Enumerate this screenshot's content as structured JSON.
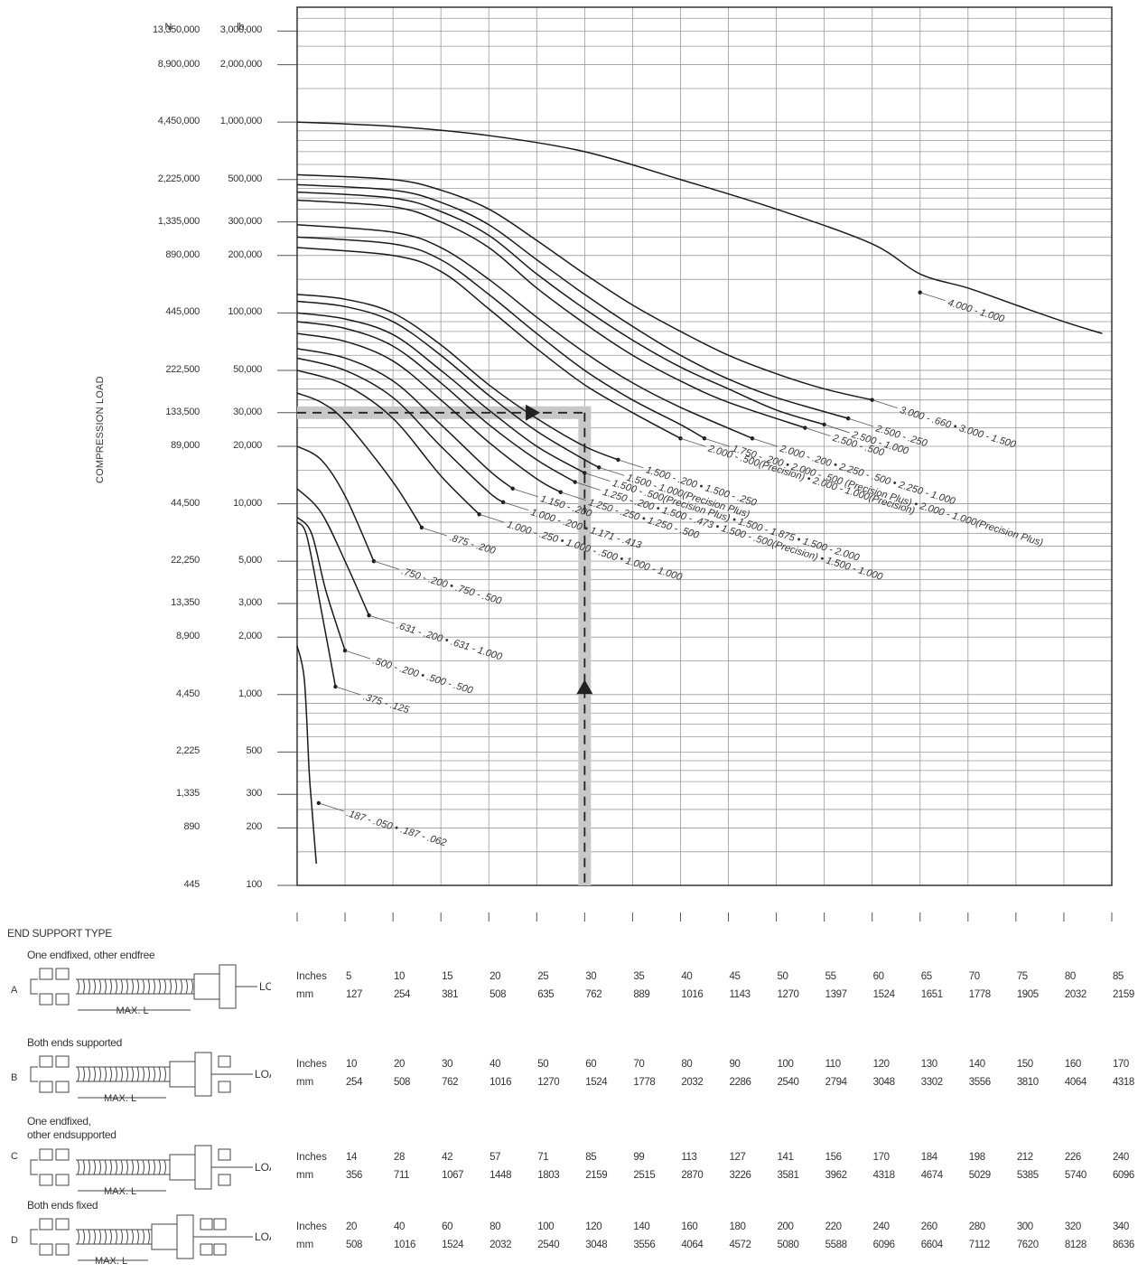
{
  "chart_data": {
    "type": "line",
    "ylabel": "COMPRESSION LOAD",
    "y_scale": "log",
    "y_units": {
      "N_header": "N",
      "lb_header": "lb."
    },
    "y_ticks": [
      {
        "n": "13,350,000",
        "lb": "3,000,000"
      },
      {
        "n": "8,900,000",
        "lb": "2,000,000"
      },
      {
        "n": "4,450,000",
        "lb": "1,000,000"
      },
      {
        "n": "2,225,000",
        "lb": "500,000"
      },
      {
        "n": "1,335,000",
        "lb": "300,000"
      },
      {
        "n": "890,000",
        "lb": "200,000"
      },
      {
        "n": "445,000",
        "lb": "100,000"
      },
      {
        "n": "222,500",
        "lb": "50,000"
      },
      {
        "n": "133,500",
        "lb": "30,000"
      },
      {
        "n": "89,000",
        "lb": "20,000"
      },
      {
        "n": "44,500",
        "lb": "10,000"
      },
      {
        "n": "22,250",
        "lb": "5,000"
      },
      {
        "n": "13,350",
        "lb": "3,000"
      },
      {
        "n": "8,900",
        "lb": "2,000"
      },
      {
        "n": "4,450",
        "lb": "1,000"
      },
      {
        "n": "2,225",
        "lb": "500"
      },
      {
        "n": "1,335",
        "lb": "300"
      },
      {
        "n": "890",
        "lb": "200"
      },
      {
        "n": "445",
        "lb": "100"
      }
    ],
    "ylim_lb": [
      100,
      4000000
    ],
    "x_cols": 17,
    "x_lim_col": [
      0,
      17
    ],
    "grid": true,
    "example_point": {
      "x_col": 6,
      "y_lb": 30000
    },
    "series": [
      {
        "name": "4.000 - 1.000",
        "points": [
          [
            0,
            1000000
          ],
          [
            2,
            950000
          ],
          [
            4,
            850000
          ],
          [
            6,
            700000
          ],
          [
            8,
            500000
          ],
          [
            10,
            350000
          ],
          [
            12,
            230000
          ],
          [
            13,
            160000
          ],
          [
            14,
            135000
          ],
          [
            15,
            110000
          ],
          [
            16,
            90000
          ],
          [
            16.8,
            78000
          ]
        ],
        "label_at": [
          13,
          128000
        ]
      },
      {
        "name": "3.000 - .660 • 3.000 - 1.500",
        "points": [
          [
            0,
            530000
          ],
          [
            2,
            500000
          ],
          [
            3,
            440000
          ],
          [
            4,
            350000
          ],
          [
            5,
            240000
          ],
          [
            6,
            160000
          ],
          [
            7,
            110000
          ],
          [
            8,
            80000
          ],
          [
            9,
            60000
          ],
          [
            10,
            48000
          ],
          [
            11,
            40000
          ],
          [
            12,
            35000
          ]
        ],
        "label_at": [
          12,
          35000
        ]
      },
      {
        "name": "2.500 - .250",
        "points": [
          [
            0,
            470000
          ],
          [
            2,
            440000
          ],
          [
            3,
            380000
          ],
          [
            4,
            290000
          ],
          [
            5,
            190000
          ],
          [
            6,
            125000
          ],
          [
            7,
            85000
          ],
          [
            8,
            60000
          ],
          [
            9,
            45000
          ],
          [
            10,
            36000
          ],
          [
            11.5,
            28000
          ]
        ],
        "label_at": [
          11.5,
          28000
        ]
      },
      {
        "name": "2.500 - 1.000",
        "points": [
          [
            0,
            430000
          ],
          [
            2,
            400000
          ],
          [
            3,
            340000
          ],
          [
            4,
            255000
          ],
          [
            5,
            160000
          ],
          [
            6,
            105000
          ],
          [
            7,
            72000
          ],
          [
            8,
            52000
          ],
          [
            9,
            40000
          ],
          [
            10,
            31000
          ],
          [
            11,
            26000
          ]
        ],
        "label_at": [
          11,
          26000
        ]
      },
      {
        "name": "2.500 - .500",
        "points": [
          [
            0,
            390000
          ],
          [
            2,
            360000
          ],
          [
            3,
            300000
          ],
          [
            4,
            220000
          ],
          [
            5,
            135000
          ],
          [
            6,
            88000
          ],
          [
            7,
            60000
          ],
          [
            8,
            44000
          ],
          [
            9,
            34000
          ],
          [
            10.6,
            25000
          ]
        ],
        "label_at": [
          10.6,
          25000
        ]
      },
      {
        "name": "2.000 - .200 • 2.250 - .500 • 2.250 - 1.000",
        "points": [
          [
            0,
            290000
          ],
          [
            2,
            265000
          ],
          [
            3,
            220000
          ],
          [
            4,
            150000
          ],
          [
            5,
            95000
          ],
          [
            6,
            62000
          ],
          [
            7,
            43000
          ],
          [
            8,
            32000
          ],
          [
            9.5,
            22000
          ]
        ],
        "label_at": [
          9.5,
          22000
        ]
      },
      {
        "name": "1.750 - .200 • 2.000 - .500 (Precision Plus) • 2.000 - 1.000(Precision Plus)",
        "points": [
          [
            0,
            250000
          ],
          [
            2,
            230000
          ],
          [
            3,
            190000
          ],
          [
            4,
            125000
          ],
          [
            5,
            78000
          ],
          [
            6,
            50000
          ],
          [
            7,
            35000
          ],
          [
            8,
            26000
          ],
          [
            8.5,
            22000
          ]
        ],
        "label_at": [
          8.5,
          22000
        ]
      },
      {
        "name": "2.000 - .500(Precision) • 2.000 - 1.000(Precision)",
        "points": [
          [
            0,
            220000
          ],
          [
            2,
            200000
          ],
          [
            3,
            165000
          ],
          [
            4,
            105000
          ],
          [
            5,
            65000
          ],
          [
            6,
            42000
          ],
          [
            7,
            30000
          ],
          [
            8,
            22000
          ]
        ],
        "label_at": [
          8,
          22000
        ]
      },
      {
        "name": "1.500 - .200 • 1.500 - .250",
        "points": [
          [
            0,
            125000
          ],
          [
            1,
            118000
          ],
          [
            2,
            100000
          ],
          [
            3,
            68000
          ],
          [
            4,
            42000
          ],
          [
            5,
            28000
          ],
          [
            6,
            20000
          ],
          [
            6.7,
            17000
          ]
        ],
        "label_at": [
          6.7,
          17000
        ]
      },
      {
        "name": "1.500 - 1.000(Precision Plus)",
        "points": [
          [
            0,
            115000
          ],
          [
            1,
            108000
          ],
          [
            2,
            90000
          ],
          [
            3,
            60000
          ],
          [
            4,
            37000
          ],
          [
            5,
            24000
          ],
          [
            6,
            17000
          ],
          [
            6.3,
            15500
          ]
        ],
        "label_at": [
          6.3,
          15500
        ]
      },
      {
        "name": "1.500 - .500(Precision Plus) • 1.500 - 1.875 • 1.500 - 2.000",
        "points": [
          [
            0,
            100000
          ],
          [
            1,
            93000
          ],
          [
            2,
            77000
          ],
          [
            3,
            50000
          ],
          [
            4,
            31000
          ],
          [
            5,
            20000
          ],
          [
            6,
            14500
          ]
        ],
        "label_at": [
          6,
          14500
        ]
      },
      {
        "name": "1.250 - .200 • 1.500 - .473 • 1.500 - .500(Precision) • 1.500 - 1.000",
        "points": [
          [
            0,
            90000
          ],
          [
            1,
            83000
          ],
          [
            2,
            67000
          ],
          [
            3,
            43000
          ],
          [
            4,
            26000
          ],
          [
            5,
            17000
          ],
          [
            5.8,
            13000
          ]
        ],
        "label_at": [
          5.8,
          13000
        ]
      },
      {
        "name": "1.250 - .250 • 1.250 - .500",
        "points": [
          [
            0,
            78000
          ],
          [
            1,
            71000
          ],
          [
            2,
            56000
          ],
          [
            3,
            35000
          ],
          [
            4,
            21000
          ],
          [
            5,
            13500
          ],
          [
            5.5,
            11500
          ]
        ],
        "label_at": [
          5.5,
          11500
        ]
      },
      {
        "name": "1.150 - .200",
        "points": [
          [
            0,
            65000
          ],
          [
            1,
            58000
          ],
          [
            2,
            44000
          ],
          [
            3,
            26000
          ],
          [
            4,
            15000
          ],
          [
            4.5,
            12000
          ]
        ],
        "label_at": [
          4.5,
          12000
        ]
      },
      {
        "name": "1.000 - .200 • 1.171 - .413",
        "points": [
          [
            0,
            58000
          ],
          [
            1,
            50000
          ],
          [
            2,
            36000
          ],
          [
            3,
            20000
          ],
          [
            4,
            11500
          ],
          [
            4.3,
            10200
          ]
        ],
        "label_at": [
          4.3,
          10200
        ]
      },
      {
        "name": "1.000 - .250 • 1.000 - .500 • 1.000 - 1.000",
        "points": [
          [
            0,
            50000
          ],
          [
            1,
            42000
          ],
          [
            2,
            28000
          ],
          [
            3,
            14000
          ],
          [
            3.8,
            8800
          ]
        ],
        "label_at": [
          3.8,
          8800
        ]
      },
      {
        "name": ".875 - .200",
        "points": [
          [
            0,
            38000
          ],
          [
            0.5,
            34000
          ],
          [
            1,
            27000
          ],
          [
            2,
            13000
          ],
          [
            2.6,
            7500
          ]
        ],
        "label_at": [
          2.6,
          7500
        ]
      },
      {
        "name": ".750 - .200 • .750 - .500",
        "points": [
          [
            0,
            20000
          ],
          [
            0.5,
            17000
          ],
          [
            1,
            11000
          ],
          [
            1.6,
            5000
          ]
        ],
        "label_at": [
          1.6,
          5000
        ]
      },
      {
        "name": ".631 - .200 • .631 - 1.000",
        "points": [
          [
            0,
            12000
          ],
          [
            0.5,
            9000
          ],
          [
            1,
            5000
          ],
          [
            1.5,
            2600
          ]
        ],
        "label_at": [
          1.5,
          2600
        ]
      },
      {
        "name": ".500 - .200 • .500 - .500",
        "points": [
          [
            0,
            8500
          ],
          [
            0.3,
            7000
          ],
          [
            0.6,
            3500
          ],
          [
            1,
            1700
          ]
        ],
        "label_at": [
          1,
          1700
        ]
      },
      {
        "name": ".375 - .125",
        "points": [
          [
            0,
            8000
          ],
          [
            0.2,
            6800
          ],
          [
            0.5,
            2800
          ],
          [
            0.8,
            1100
          ]
        ],
        "label_at": [
          0.8,
          1100
        ]
      },
      {
        "name": ".187 - .050 • .187 - .062",
        "points": [
          [
            0,
            1800
          ],
          [
            0.15,
            1200
          ],
          [
            0.25,
            400
          ],
          [
            0.3,
            270
          ],
          [
            0.4,
            130
          ]
        ],
        "label_at": [
          0.45,
          270
        ]
      }
    ]
  },
  "end_support": {
    "title": "END SUPPORT TYPE",
    "unit_inches": "Inches",
    "unit_mm": "mm",
    "load_label": "LOAD",
    "max_label": "MAX. L",
    "rows": [
      {
        "letter": "A",
        "desc": "One endfixed, other endfree",
        "inches": [
          "5",
          "10",
          "15",
          "20",
          "25",
          "30",
          "35",
          "40",
          "45",
          "50",
          "55",
          "60",
          "65",
          "70",
          "75",
          "80",
          "85"
        ],
        "mm": [
          "127",
          "254",
          "381",
          "508",
          "635",
          "762",
          "889",
          "1016",
          "1143",
          "1270",
          "1397",
          "1524",
          "1651",
          "1778",
          "1905",
          "2032",
          "2159"
        ]
      },
      {
        "letter": "B",
        "desc": "Both ends supported",
        "inches": [
          "10",
          "20",
          "30",
          "40",
          "50",
          "60",
          "70",
          "80",
          "90",
          "100",
          "110",
          "120",
          "130",
          "140",
          "150",
          "160",
          "170"
        ],
        "mm": [
          "254",
          "508",
          "762",
          "1016",
          "1270",
          "1524",
          "1778",
          "2032",
          "2286",
          "2540",
          "2794",
          "3048",
          "3302",
          "3556",
          "3810",
          "4064",
          "4318"
        ]
      },
      {
        "letter": "C",
        "desc": "One endfixed,\nother endsupported",
        "inches": [
          "14",
          "28",
          "42",
          "57",
          "71",
          "85",
          "99",
          "113",
          "127",
          "141",
          "156",
          "170",
          "184",
          "198",
          "212",
          "226",
          "240"
        ],
        "mm": [
          "356",
          "711",
          "1067",
          "1448",
          "1803",
          "2159",
          "2515",
          "2870",
          "3226",
          "3581",
          "3962",
          "4318",
          "4674",
          "5029",
          "5385",
          "5740",
          "6096"
        ]
      },
      {
        "letter": "D",
        "desc": "Both ends fixed",
        "inches": [
          "20",
          "40",
          "60",
          "80",
          "100",
          "120",
          "140",
          "160",
          "180",
          "200",
          "220",
          "240",
          "260",
          "280",
          "300",
          "320",
          "340"
        ],
        "mm": [
          "508",
          "1016",
          "1524",
          "2032",
          "2540",
          "3048",
          "3556",
          "4064",
          "4572",
          "5080",
          "5588",
          "6096",
          "6604",
          "7112",
          "7620",
          "8128",
          "8636"
        ]
      }
    ]
  }
}
